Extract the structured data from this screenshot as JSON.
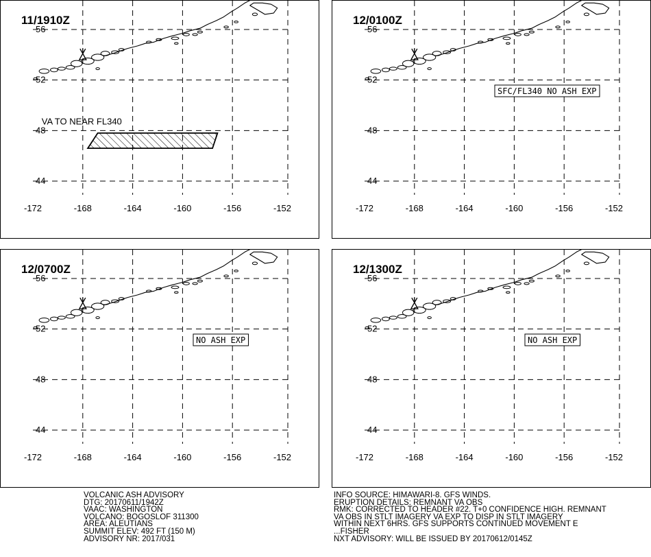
{
  "panels": [
    {
      "time": "11/1910Z",
      "lat_labels": [
        "56",
        "52",
        "48",
        "44"
      ],
      "lon_labels": [
        "-172",
        "-168",
        "-164",
        "-160",
        "-156",
        "-152"
      ],
      "ash_label": "VA TO NEAR FL340",
      "ash_polygon": [
        [
          -167.6,
          46.6
        ],
        [
          -166.8,
          47.8
        ],
        [
          -157.2,
          47.8
        ],
        [
          -157.6,
          46.6
        ]
      ],
      "notice": ""
    },
    {
      "time": "12/0100Z",
      "lat_labels": [
        "56",
        "52",
        "48",
        "44"
      ],
      "lon_labels": [
        "-172",
        "-168",
        "-164",
        "-160",
        "-156",
        "-152"
      ],
      "ash_label": "",
      "ash_polygon": [],
      "notice": "SFC/FL340 NO ASH EXP"
    },
    {
      "time": "12/0700Z",
      "lat_labels": [
        "56",
        "52",
        "48",
        "44"
      ],
      "lon_labels": [
        "-172",
        "-168",
        "-164",
        "-160",
        "-156",
        "-152"
      ],
      "ash_label": "",
      "ash_polygon": [],
      "notice": "NO ASH EXP"
    },
    {
      "time": "12/1300Z",
      "lat_labels": [
        "56",
        "52",
        "48",
        "44"
      ],
      "lon_labels": [
        "-172",
        "-168",
        "-164",
        "-160",
        "-156",
        "-152"
      ],
      "ash_label": "",
      "ash_polygon": [],
      "notice": "NO ASH EXP"
    }
  ],
  "volcano_location": [
    -168.0,
    53.93
  ],
  "advisory_left": [
    "VOLCANIC ASH ADVISORY",
    "DTG: 20170611/1942Z",
    "VAAC: WASHINGTON",
    "VOLCANO: BOGOSLOF 311300",
    "AREA: ALEUTIANS",
    "SUMMIT ELEV: 492 FT (150 M)",
    "ADVISORY NR: 2017/031"
  ],
  "advisory_right": [
    "INFO SOURCE: HIMAWARI-8. GFS WINDS.",
    "ERUPTION DETAILS: REMNANT VA OBS",
    "RMK: CORRECTED TO HEADER #22. T+0 CONFIDENCE HIGH. REMNANT",
    "VA OBS IN STLT IMAGERY VA EXP TO DISP IN STLT IMAGERY",
    "WITHIN NEXT 6HRS. GFS SUPPORTS CONTINUED MOVEMENT E",
    "...FISHER",
    "NXT ADVISORY: WILL BE ISSUED BY 20170612/0145Z"
  ]
}
